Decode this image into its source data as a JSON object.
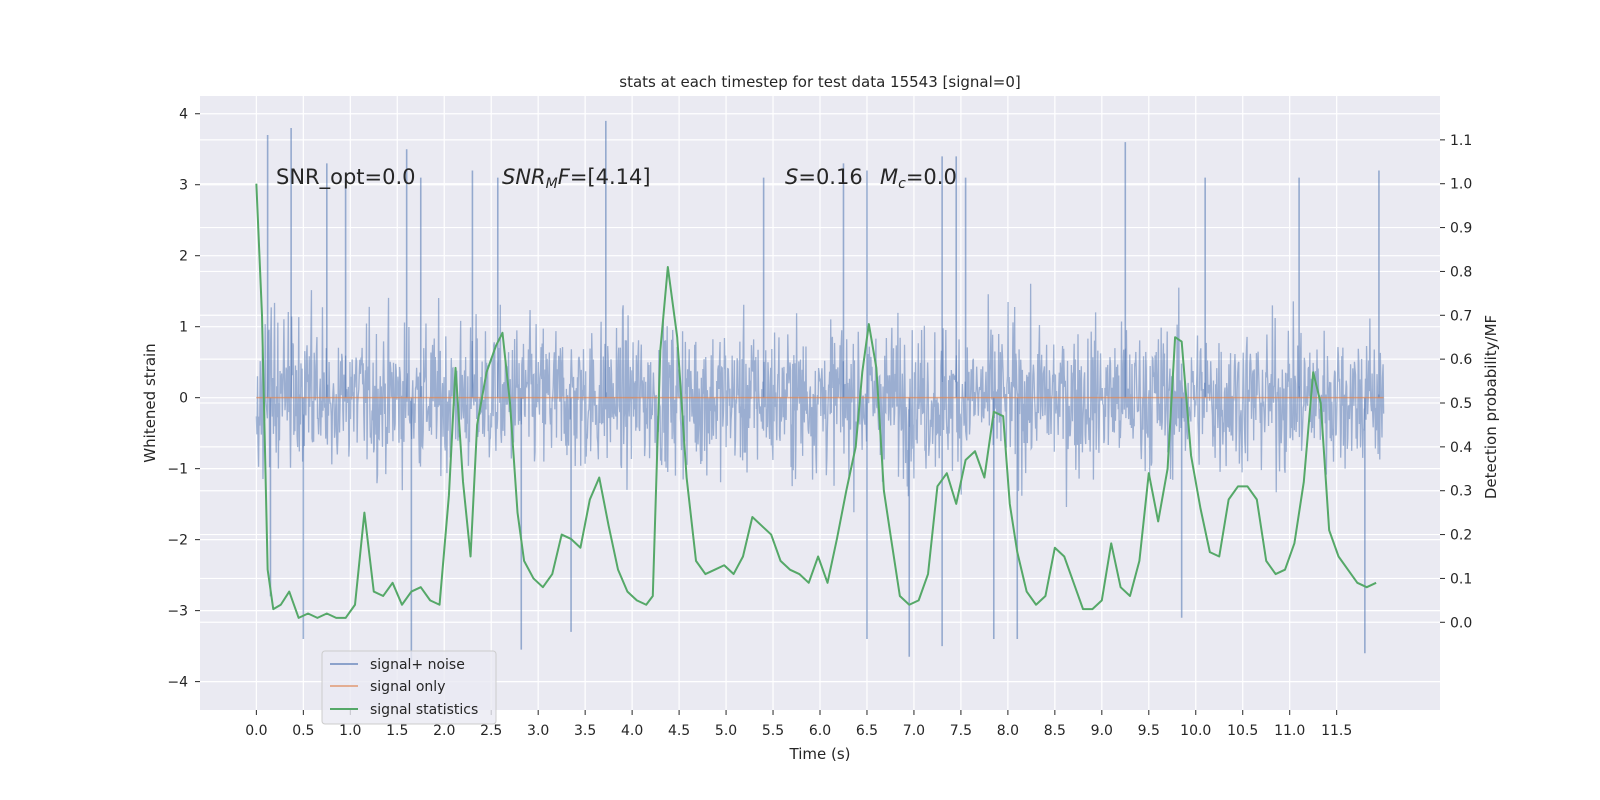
{
  "chart_data": {
    "type": "line",
    "title": "stats at each timestep for test data 15543 [signal=0]",
    "xlabel": "Time (s)",
    "ylabel": "Whitened strain",
    "ylabel_right": "Detection probability/MF",
    "xlim": [
      -0.6,
      12.6
    ],
    "ylim": [
      -4.4,
      4.25
    ],
    "ylim_right": [
      -0.2,
      1.2
    ],
    "x_ticks": [
      "0.0",
      "0.5",
      "1.0",
      "1.5",
      "2.0",
      "2.5",
      "3.0",
      "3.5",
      "4.0",
      "4.5",
      "5.0",
      "5.5",
      "6.0",
      "6.5",
      "7.0",
      "7.5",
      "8.0",
      "8.5",
      "9.0",
      "9.5",
      "10.0",
      "10.5",
      "11.0",
      "11.5"
    ],
    "y_ticks": [
      "4",
      "3",
      "2",
      "1",
      "0",
      "−1",
      "−2",
      "−3",
      "−4"
    ],
    "y_right_ticks": [
      "1.1",
      "1.0",
      "0.9",
      "0.8",
      "0.7",
      "0.6",
      "0.5",
      "0.4",
      "0.3",
      "0.2",
      "0.1",
      "0.0"
    ],
    "grid": true,
    "legend_placement": "lower-left",
    "annotations": {
      "snr_opt": "SNR_opt=0.0",
      "snr_mf_label": "SNR",
      "snr_mf_sub": "M",
      "snr_mf_f": "F",
      "snr_mf_value": "=[4.14]",
      "s_label": "S",
      "s_value": "=0.16",
      "mc_label": "M",
      "mc_sub": "c",
      "mc_value": "=0.0"
    },
    "series": [
      {
        "name": "signal+ noise",
        "axis": "left",
        "color": "#4c72b0",
        "x_range": [
          0.0,
          12.0
        ],
        "samples": 2048,
        "envelope": {
          "min": -3.6,
          "max": 3.9
        },
        "peaks": [
          [
            0.12,
            3.7
          ],
          [
            0.37,
            3.8
          ],
          [
            0.75,
            3.3
          ],
          [
            0.95,
            3.1
          ],
          [
            1.6,
            3.5
          ],
          [
            1.75,
            3.1
          ],
          [
            2.3,
            3.2
          ],
          [
            2.57,
            3.1
          ],
          [
            3.72,
            3.9
          ],
          [
            5.4,
            3.1
          ],
          [
            6.25,
            3.3
          ],
          [
            6.5,
            3.2
          ],
          [
            7.3,
            3.4
          ],
          [
            7.45,
            3.4
          ],
          [
            7.55,
            3.1
          ],
          [
            9.25,
            3.6
          ],
          [
            10.1,
            3.1
          ],
          [
            11.1,
            3.1
          ],
          [
            11.95,
            3.2
          ],
          [
            1.65,
            -3.7
          ],
          [
            2.82,
            -3.55
          ],
          [
            6.95,
            -3.65
          ],
          [
            11.8,
            -3.6
          ],
          [
            3.35,
            -3.3
          ],
          [
            6.5,
            -3.4
          ],
          [
            7.3,
            -3.5
          ],
          [
            7.85,
            -3.4
          ],
          [
            8.1,
            -3.4
          ],
          [
            9.85,
            -3.1
          ],
          [
            0.5,
            -3.4
          ],
          [
            0.15,
            -2.8
          ]
        ]
      },
      {
        "name": "signal only",
        "axis": "left",
        "color": "#dd8452",
        "x": [
          0.0,
          12.0
        ],
        "values": [
          0.0,
          0.0
        ]
      },
      {
        "name": "signal statistics",
        "axis": "right",
        "color": "#55a868",
        "x": [
          0.0,
          0.06,
          0.12,
          0.18,
          0.26,
          0.35,
          0.45,
          0.55,
          0.65,
          0.75,
          0.85,
          0.95,
          1.05,
          1.15,
          1.25,
          1.35,
          1.45,
          1.55,
          1.65,
          1.75,
          1.85,
          1.95,
          2.05,
          2.12,
          2.2,
          2.28,
          2.35,
          2.45,
          2.55,
          2.62,
          2.7,
          2.78,
          2.85,
          2.95,
          3.05,
          3.15,
          3.25,
          3.35,
          3.45,
          3.55,
          3.65,
          3.75,
          3.85,
          3.95,
          4.05,
          4.15,
          4.22,
          4.3,
          4.38,
          4.48,
          4.58,
          4.68,
          4.78,
          4.88,
          4.98,
          5.08,
          5.18,
          5.28,
          5.38,
          5.48,
          5.58,
          5.68,
          5.78,
          5.88,
          5.98,
          6.08,
          6.18,
          6.28,
          6.38,
          6.45,
          6.52,
          6.6,
          6.68,
          6.75,
          6.85,
          6.95,
          7.05,
          7.15,
          7.25,
          7.35,
          7.45,
          7.55,
          7.65,
          7.75,
          7.85,
          7.95,
          8.02,
          8.1,
          8.2,
          8.3,
          8.4,
          8.5,
          8.6,
          8.7,
          8.8,
          8.9,
          9.0,
          9.1,
          9.2,
          9.3,
          9.4,
          9.5,
          9.6,
          9.7,
          9.78,
          9.85,
          9.95,
          10.05,
          10.15,
          10.25,
          10.35,
          10.45,
          10.55,
          10.65,
          10.75,
          10.85,
          10.95,
          11.05,
          11.15,
          11.25,
          11.33,
          11.42,
          11.52,
          11.62,
          11.72,
          11.82,
          11.92
        ],
        "values": [
          1.0,
          0.7,
          0.12,
          0.03,
          0.04,
          0.07,
          0.01,
          0.02,
          0.01,
          0.02,
          0.01,
          0.01,
          0.04,
          0.25,
          0.07,
          0.06,
          0.09,
          0.04,
          0.07,
          0.08,
          0.05,
          0.04,
          0.29,
          0.58,
          0.32,
          0.15,
          0.45,
          0.57,
          0.63,
          0.66,
          0.5,
          0.25,
          0.14,
          0.1,
          0.08,
          0.11,
          0.2,
          0.19,
          0.17,
          0.28,
          0.33,
          0.22,
          0.12,
          0.07,
          0.05,
          0.04,
          0.06,
          0.62,
          0.81,
          0.65,
          0.33,
          0.14,
          0.11,
          0.12,
          0.13,
          0.11,
          0.15,
          0.24,
          0.22,
          0.2,
          0.14,
          0.12,
          0.11,
          0.09,
          0.15,
          0.09,
          0.19,
          0.3,
          0.4,
          0.57,
          0.68,
          0.58,
          0.3,
          0.2,
          0.06,
          0.04,
          0.05,
          0.11,
          0.31,
          0.34,
          0.27,
          0.37,
          0.39,
          0.33,
          0.48,
          0.47,
          0.27,
          0.16,
          0.07,
          0.04,
          0.06,
          0.17,
          0.15,
          0.09,
          0.03,
          0.03,
          0.05,
          0.18,
          0.08,
          0.06,
          0.14,
          0.34,
          0.23,
          0.35,
          0.65,
          0.64,
          0.38,
          0.26,
          0.16,
          0.15,
          0.28,
          0.31,
          0.31,
          0.28,
          0.14,
          0.11,
          0.12,
          0.18,
          0.32,
          0.57,
          0.5,
          0.21,
          0.15,
          0.12,
          0.09,
          0.08,
          0.09
        ]
      }
    ]
  }
}
